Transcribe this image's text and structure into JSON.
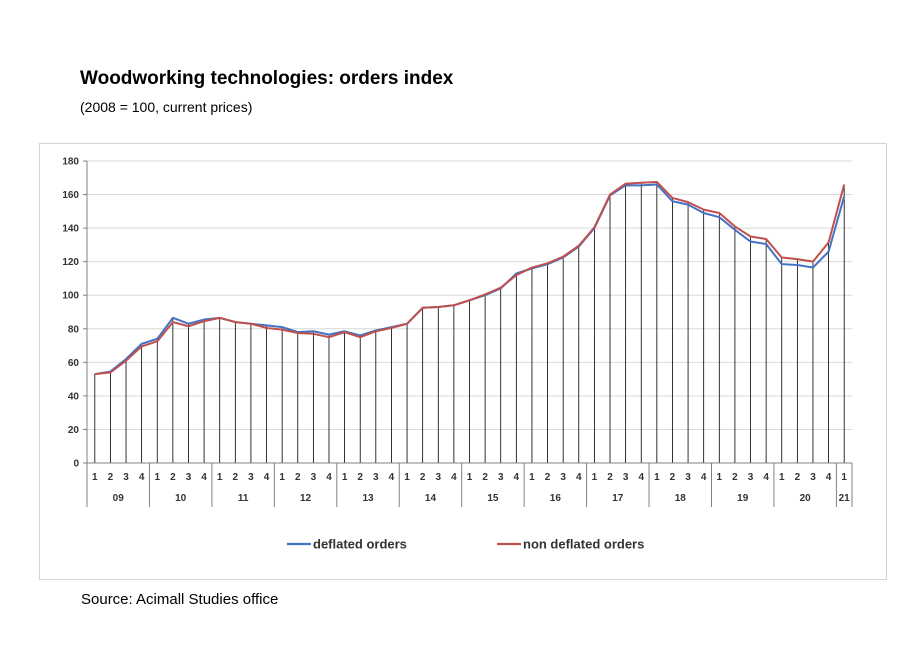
{
  "header": {
    "title": "Woodworking technologies: orders index",
    "subtitle": "(2008 = 100, current prices)"
  },
  "footer": {
    "source": "Source: Acimall Studies office"
  },
  "colors": {
    "deflated": "#4472c4",
    "non_deflated": "#c0504d",
    "grid": "#d9d9d9",
    "drop": "#000000"
  },
  "chart_data": {
    "type": "line",
    "title": "Woodworking technologies: orders index",
    "subtitle": "(2008 = 100, current prices)",
    "xlabel": "",
    "ylabel": "",
    "ylim": [
      0,
      180
    ],
    "yticks": [
      0,
      20,
      40,
      60,
      80,
      100,
      120,
      140,
      160,
      180
    ],
    "grid": true,
    "legend": "bottom",
    "categories": [
      "1",
      "2",
      "3",
      "4",
      "1",
      "2",
      "3",
      "4",
      "1",
      "2",
      "3",
      "4",
      "1",
      "2",
      "3",
      "4",
      "1",
      "2",
      "3",
      "4",
      "1",
      "2",
      "3",
      "4",
      "1",
      "2",
      "3",
      "4",
      "1",
      "2",
      "3",
      "4",
      "1",
      "2",
      "3",
      "4",
      "1",
      "2",
      "3",
      "4",
      "1",
      "2",
      "3",
      "4",
      "1",
      "2",
      "3",
      "4",
      "1"
    ],
    "year_groups": [
      {
        "label": "09",
        "count": 4
      },
      {
        "label": "10",
        "count": 4
      },
      {
        "label": "11",
        "count": 4
      },
      {
        "label": "12",
        "count": 4
      },
      {
        "label": "13",
        "count": 4
      },
      {
        "label": "14",
        "count": 4
      },
      {
        "label": "15",
        "count": 4
      },
      {
        "label": "16",
        "count": 4
      },
      {
        "label": "17",
        "count": 4
      },
      {
        "label": "18",
        "count": 4
      },
      {
        "label": "19",
        "count": 4
      },
      {
        "label": "20",
        "count": 4
      },
      {
        "label": "21",
        "count": 1
      }
    ],
    "series": [
      {
        "name": "deflated orders",
        "values": [
          53,
          54.5,
          62,
          71,
          74,
          86.5,
          83,
          85.5,
          86.5,
          84,
          83,
          82,
          81,
          78,
          78.5,
          76.5,
          78.5,
          76,
          79,
          81,
          83,
          92.5,
          93,
          94,
          97,
          100,
          104,
          113,
          116,
          118.5,
          122.5,
          129,
          140,
          159.5,
          165.5,
          165.5,
          166,
          156,
          154,
          149,
          146.5,
          139,
          132,
          130.5,
          118.5,
          118,
          116.5,
          126,
          159
        ]
      },
      {
        "name": "non deflated orders",
        "values": [
          53,
          54,
          61,
          69.5,
          72.5,
          84,
          81.5,
          84.5,
          86.5,
          84,
          83,
          80.5,
          79.5,
          77.5,
          77,
          75,
          78,
          75,
          78.5,
          80.5,
          83,
          92.5,
          93,
          94,
          97,
          100.5,
          104.5,
          112,
          116.5,
          119,
          123,
          129.5,
          140.5,
          160,
          166.5,
          167,
          167.5,
          158,
          155.5,
          151,
          149,
          141,
          135,
          133.5,
          122.5,
          121.5,
          120,
          131.5,
          166
        ]
      }
    ]
  }
}
